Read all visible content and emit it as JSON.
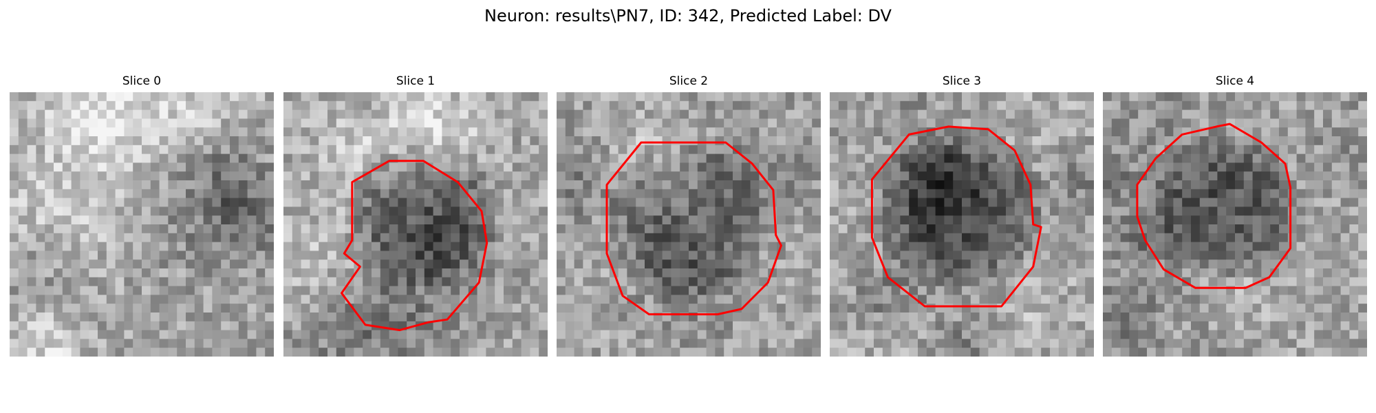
{
  "figure": {
    "title": "Neuron: results\\PN7, ID: 342, Predicted Label: DV"
  },
  "colors": {
    "background": "#ffffff",
    "contour": "#ff0000",
    "colormap": "gray"
  },
  "panels": [
    {
      "title": "Slice 0",
      "has_contour": false
    },
    {
      "title": "Slice 1",
      "has_contour": true
    },
    {
      "title": "Slice 2",
      "has_contour": true
    },
    {
      "title": "Slice 3",
      "has_contour": true
    },
    {
      "title": "Slice 4",
      "has_contour": true
    }
  ]
}
